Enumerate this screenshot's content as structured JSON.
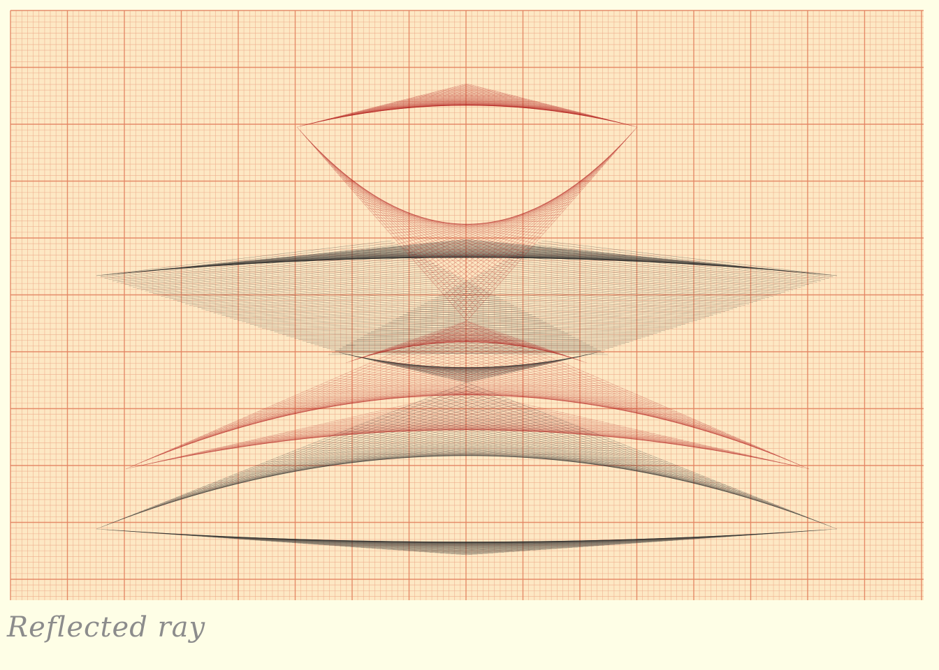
{
  "caption": "Reflected ray",
  "colors": {
    "background": "#fefee6",
    "paper": "#fde8c4",
    "grid_fine": "#ecaa8a",
    "grid_major": "#e2825f",
    "ray_dark": "#2a2a2a",
    "ray_red": "#b21a1a",
    "caption": "#8c8c8c"
  }
}
